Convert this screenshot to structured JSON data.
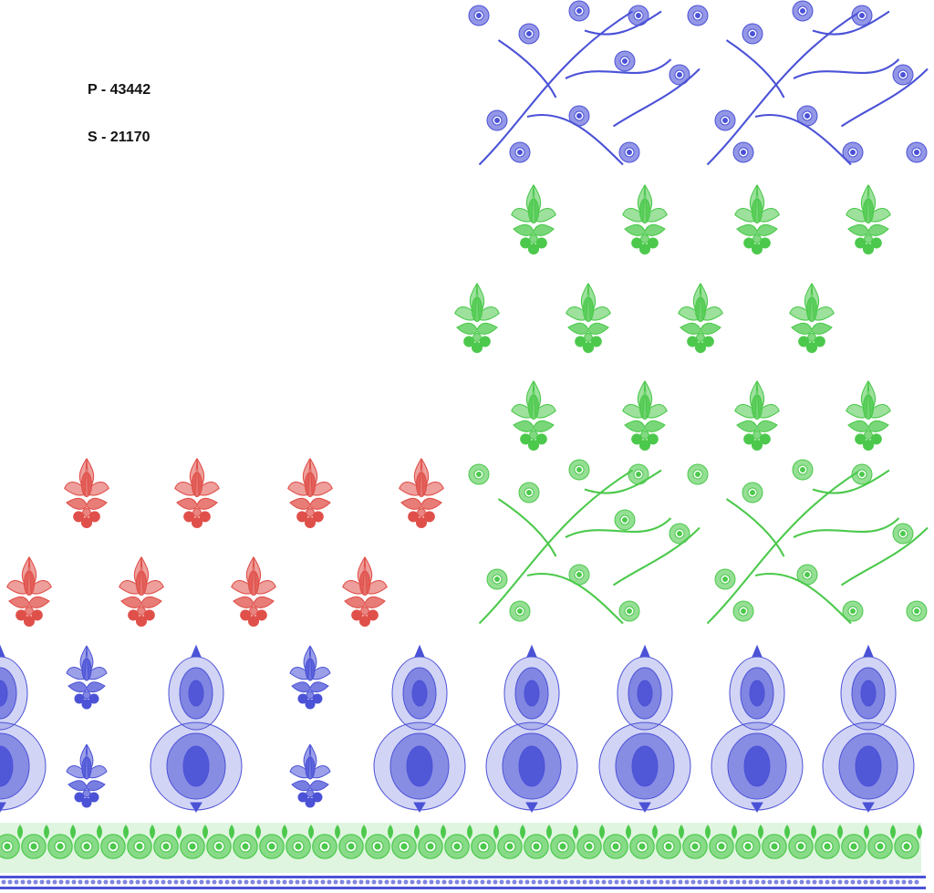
{
  "codes": {
    "p": "P - 43442",
    "s": "S - 21170"
  }
}
